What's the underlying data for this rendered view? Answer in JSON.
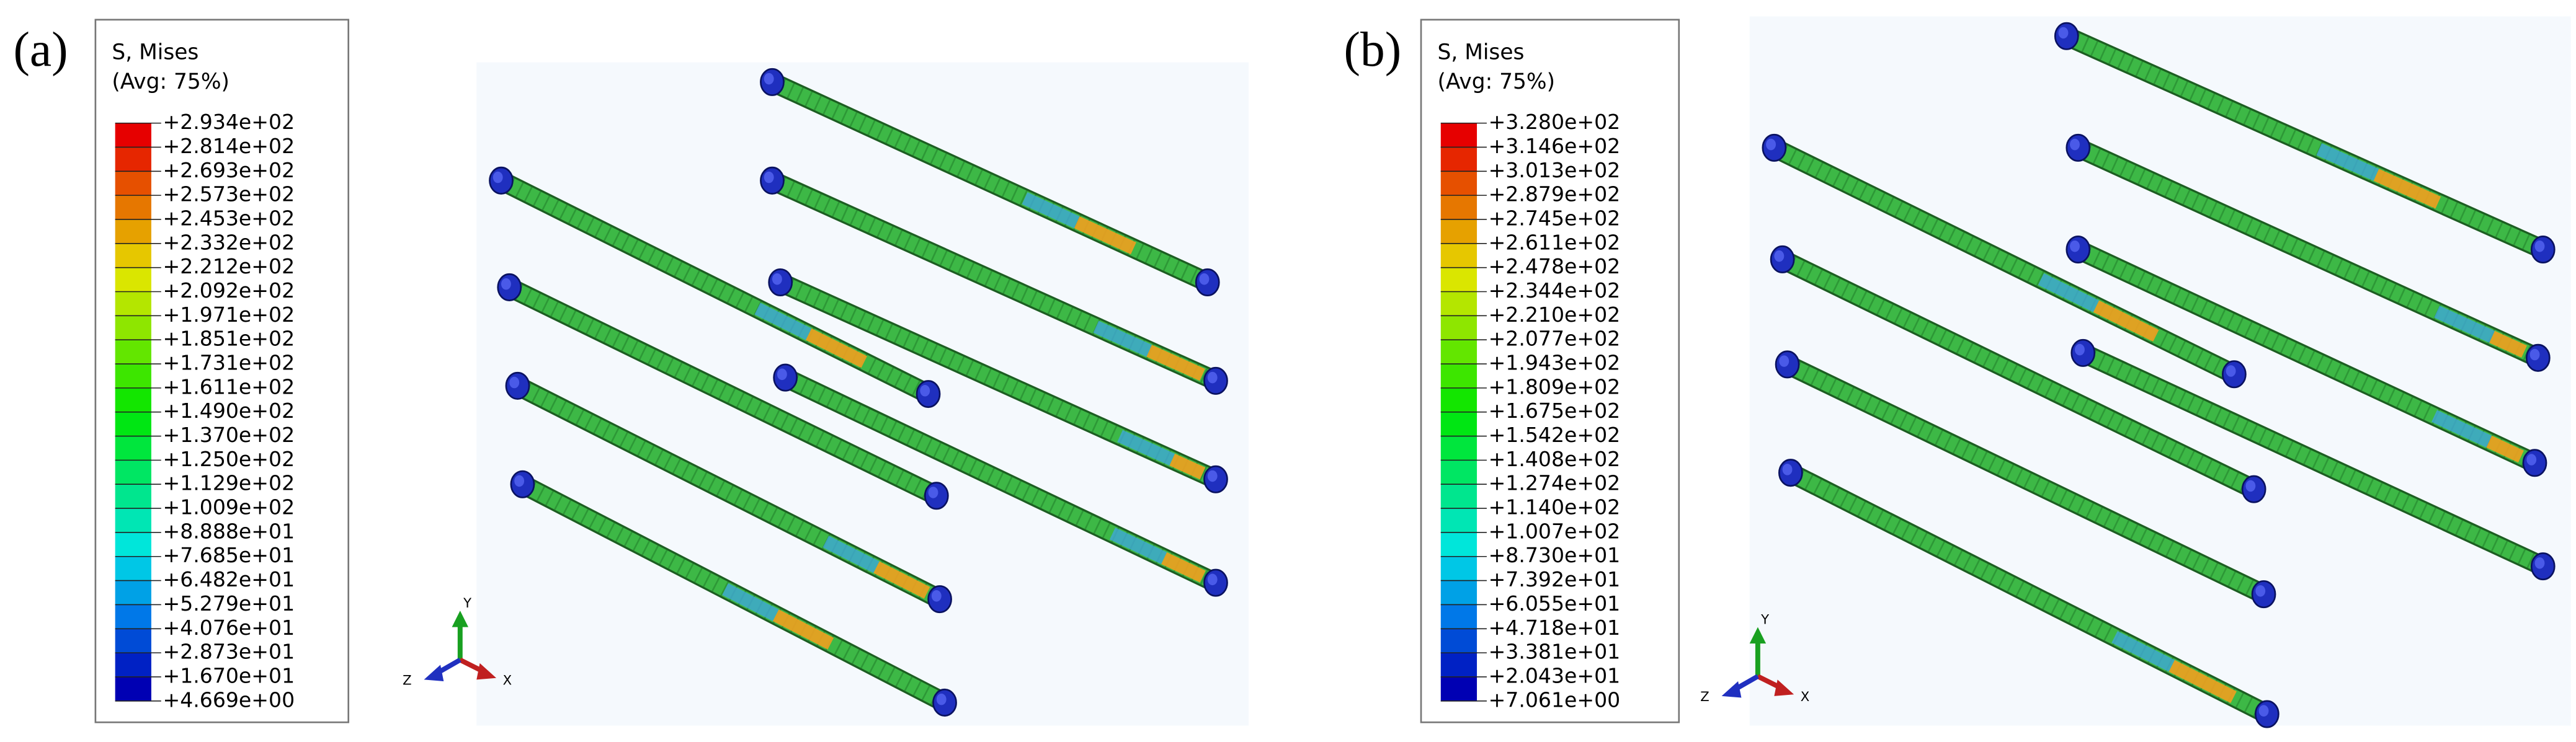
{
  "panels": [
    {
      "label": "(a)",
      "legend": {
        "title": "S, Mises",
        "subtitle": "(Avg: 75%)",
        "values": [
          "+2.934e+02",
          "+2.814e+02",
          "+2.693e+02",
          "+2.573e+02",
          "+2.453e+02",
          "+2.332e+02",
          "+2.212e+02",
          "+2.092e+02",
          "+1.971e+02",
          "+1.851e+02",
          "+1.731e+02",
          "+1.611e+02",
          "+1.490e+02",
          "+1.370e+02",
          "+1.250e+02",
          "+1.129e+02",
          "+1.009e+02",
          "+8.888e+01",
          "+7.685e+01",
          "+6.482e+01",
          "+5.279e+01",
          "+4.076e+01",
          "+2.873e+01",
          "+1.670e+01",
          "+4.669e+00"
        ]
      },
      "triad": {
        "y": "Y",
        "z": "Z",
        "x": "X"
      }
    },
    {
      "label": "(b)",
      "legend": {
        "title": "S, Mises",
        "subtitle": "(Avg: 75%)",
        "values": [
          "+3.280e+02",
          "+3.146e+02",
          "+3.013e+02",
          "+2.879e+02",
          "+2.745e+02",
          "+2.611e+02",
          "+2.478e+02",
          "+2.344e+02",
          "+2.210e+02",
          "+2.077e+02",
          "+1.943e+02",
          "+1.809e+02",
          "+1.675e+02",
          "+1.542e+02",
          "+1.408e+02",
          "+1.274e+02",
          "+1.140e+02",
          "+1.007e+02",
          "+8.730e+01",
          "+7.392e+01",
          "+6.055e+01",
          "+4.718e+01",
          "+3.381e+01",
          "+2.043e+01",
          "+7.061e+00"
        ]
      },
      "triad": {
        "y": "Y",
        "z": "Z",
        "x": "X"
      }
    }
  ]
}
